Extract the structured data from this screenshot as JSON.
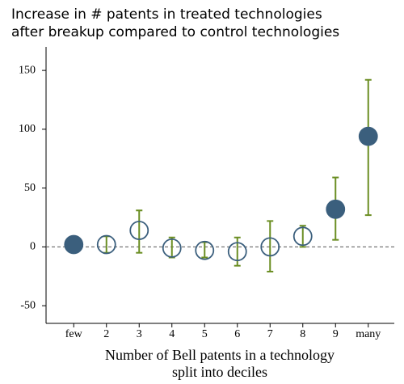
{
  "chart_data": {
    "type": "errorpoint",
    "title": [
      "Increase in # patents in treated technologies",
      "after breakup compared to control technologies"
    ],
    "xlabel": [
      "Number of Bell patents in a technology",
      "split into deciles"
    ],
    "categories": [
      "few",
      "2",
      "3",
      "4",
      "5",
      "6",
      "7",
      "8",
      "9",
      "many"
    ],
    "values": [
      2,
      2,
      14,
      -1,
      -3,
      -4,
      0,
      9,
      32,
      94
    ],
    "lower": [
      -3,
      -5,
      -5,
      -9,
      -9,
      -16,
      -21,
      0,
      6,
      27
    ],
    "upper": [
      6,
      9,
      31,
      8,
      4,
      8,
      22,
      18,
      59,
      142
    ],
    "filled": [
      true,
      false,
      false,
      false,
      false,
      false,
      false,
      false,
      true,
      true
    ],
    "marker_color": "#3b5f7d",
    "error_color": "#6b8e23",
    "reference_line": 0,
    "ylim": [
      -65,
      170
    ],
    "yticks": [
      -50,
      0,
      50,
      100,
      150
    ]
  }
}
